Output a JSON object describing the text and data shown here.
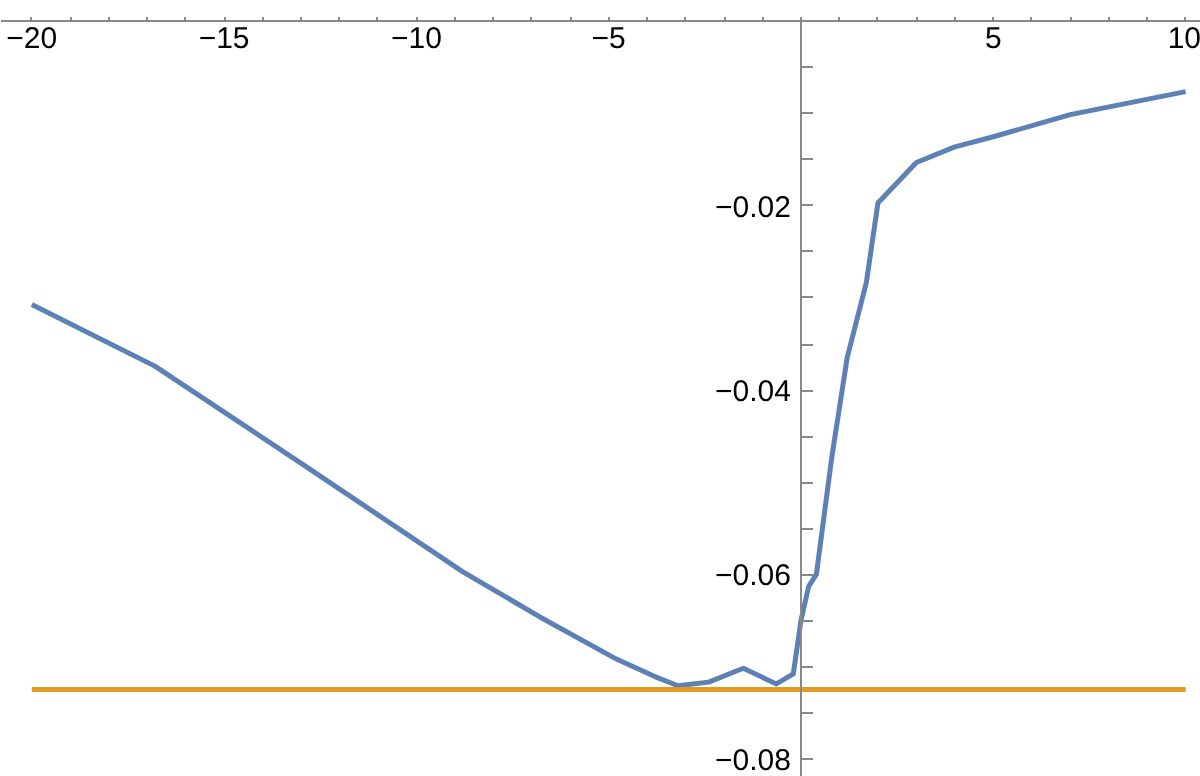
{
  "chart_data": {
    "type": "line",
    "xlim": [
      -20.8,
      10.4
    ],
    "ylim": [
      -0.082,
      0.0005
    ],
    "xticks": [
      {
        "value": -20,
        "label": "−20"
      },
      {
        "value": -19,
        "label": null
      },
      {
        "value": -18,
        "label": null
      },
      {
        "value": -17,
        "label": null
      },
      {
        "value": -16,
        "label": null
      },
      {
        "value": -15,
        "label": "−15"
      },
      {
        "value": -14,
        "label": null
      },
      {
        "value": -13,
        "label": null
      },
      {
        "value": -12,
        "label": null
      },
      {
        "value": -11,
        "label": null
      },
      {
        "value": -10,
        "label": "−10"
      },
      {
        "value": -9,
        "label": null
      },
      {
        "value": -8,
        "label": null
      },
      {
        "value": -7,
        "label": null
      },
      {
        "value": -6,
        "label": null
      },
      {
        "value": -5,
        "label": "−5"
      },
      {
        "value": -4,
        "label": null
      },
      {
        "value": -3,
        "label": null
      },
      {
        "value": -2,
        "label": null
      },
      {
        "value": -1,
        "label": null
      },
      {
        "value": 1,
        "label": null
      },
      {
        "value": 2,
        "label": null
      },
      {
        "value": 3,
        "label": null
      },
      {
        "value": 4,
        "label": null
      },
      {
        "value": 5,
        "label": "5"
      },
      {
        "value": 6,
        "label": null
      },
      {
        "value": 7,
        "label": null
      },
      {
        "value": 8,
        "label": null
      },
      {
        "value": 9,
        "label": null
      },
      {
        "value": 10,
        "label": "10"
      }
    ],
    "yticks": [
      {
        "value": -0.005,
        "label": null
      },
      {
        "value": -0.01,
        "label": null
      },
      {
        "value": -0.015,
        "label": null
      },
      {
        "value": -0.02,
        "label": "−0.02"
      },
      {
        "value": -0.025,
        "label": null
      },
      {
        "value": -0.03,
        "label": null
      },
      {
        "value": -0.035,
        "label": null
      },
      {
        "value": -0.04,
        "label": "−0.04"
      },
      {
        "value": -0.045,
        "label": null
      },
      {
        "value": -0.05,
        "label": null
      },
      {
        "value": -0.055,
        "label": null
      },
      {
        "value": -0.06,
        "label": "−0.06"
      },
      {
        "value": -0.065,
        "label": null
      },
      {
        "value": -0.07,
        "label": null
      },
      {
        "value": -0.075,
        "label": null
      },
      {
        "value": -0.08,
        "label": "−0.08"
      }
    ],
    "grid": false,
    "marker": "none",
    "line_style": "solid",
    "series": [
      {
        "color": "#5e81b5",
        "x": [
          -20,
          -16.8,
          -12.8,
          -8.8,
          -6.8,
          -4.8,
          -3.8,
          -3.2,
          -2.4,
          -1.5,
          -0.64,
          -0.2,
          0,
          0.2,
          0.4,
          0.8,
          1.2,
          1.7,
          2,
          2.5,
          3,
          4,
          5,
          7,
          10
        ],
        "values": [
          -0.0307,
          -0.0374,
          -0.0485,
          -0.0597,
          -0.0646,
          -0.0692,
          -0.0711,
          -0.0721,
          -0.0717,
          -0.0702,
          -0.0719,
          -0.0708,
          -0.065,
          -0.0613,
          -0.06,
          -0.0473,
          -0.0365,
          -0.0283,
          -0.0197,
          -0.0175,
          -0.0153,
          -0.0136,
          -0.0125,
          -0.0101,
          -0.0076
        ]
      },
      {
        "color": "#e19c24",
        "x": [
          -20,
          10
        ],
        "values": [
          -0.0725,
          -0.0725
        ]
      }
    ]
  }
}
